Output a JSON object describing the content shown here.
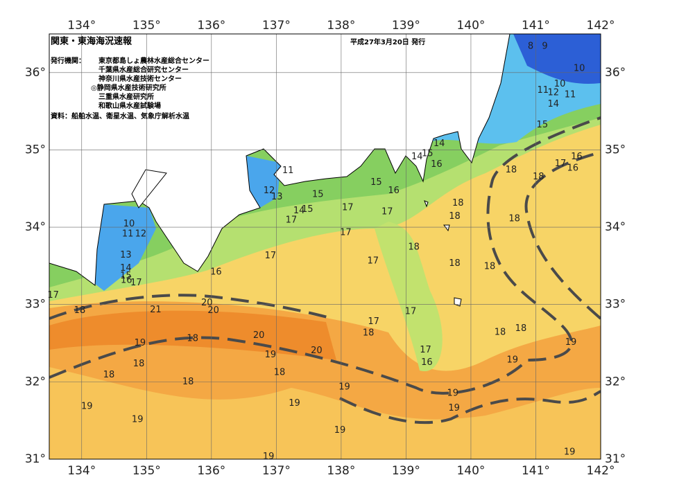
{
  "header": {
    "title": "関東・東海海況速報",
    "date": "平成27年3月20日 発行",
    "issuer_label": "発行機関：",
    "issuers": [
      "東京都島しょ農林水産総合センター",
      "千葉県水産総合研究センター",
      "神奈川県水産技術センター",
      "◎静岡県水産技術研究所",
      "三重県水産研究所",
      "和歌山県水産試験場"
    ],
    "source": "資料：船舶水温、衛星水温、気象庁解析水温"
  },
  "map": {
    "xlim": [
      133.5,
      142
    ],
    "ylim": [
      31,
      36.5
    ],
    "xticks": [
      {
        "value": 134,
        "label": "134°"
      },
      {
        "value": 135,
        "label": "135°"
      },
      {
        "value": 136,
        "label": "136°"
      },
      {
        "value": 137,
        "label": "137°"
      },
      {
        "value": 138,
        "label": "138°"
      },
      {
        "value": 139,
        "label": "139°"
      },
      {
        "value": 140,
        "label": "140°"
      },
      {
        "value": 141,
        "label": "141°"
      },
      {
        "value": 142,
        "label": "142°"
      }
    ],
    "yticks": [
      {
        "value": 31,
        "label": "31°"
      },
      {
        "value": 32,
        "label": "32°"
      },
      {
        "value": 33,
        "label": "33°"
      },
      {
        "value": 34,
        "label": "34°"
      },
      {
        "value": 35,
        "label": "35°"
      },
      {
        "value": 36,
        "label": "36°"
      }
    ],
    "isotherm_labels": [
      {
        "value": 8,
        "lon": 140.92,
        "lat": 36.34
      },
      {
        "value": 9,
        "lon": 141.14,
        "lat": 36.34
      },
      {
        "value": 10,
        "lon": 141.67,
        "lat": 36.05
      },
      {
        "value": 10,
        "lon": 141.37,
        "lat": 35.85
      },
      {
        "value": 11,
        "lon": 141.11,
        "lat": 35.77
      },
      {
        "value": 12,
        "lon": 141.27,
        "lat": 35.74
      },
      {
        "value": 11,
        "lon": 141.53,
        "lat": 35.71
      },
      {
        "value": 14,
        "lon": 141.27,
        "lat": 35.59
      },
      {
        "value": 15,
        "lon": 141.1,
        "lat": 35.32
      },
      {
        "value": 14,
        "lon": 139.51,
        "lat": 35.08
      },
      {
        "value": 15,
        "lon": 139.33,
        "lat": 34.95
      },
      {
        "value": 14,
        "lon": 139.17,
        "lat": 34.91
      },
      {
        "value": 16,
        "lon": 139.47,
        "lat": 34.81
      },
      {
        "value": 16,
        "lon": 141.63,
        "lat": 34.91
      },
      {
        "value": 17,
        "lon": 141.38,
        "lat": 34.82
      },
      {
        "value": 16,
        "lon": 141.57,
        "lat": 34.76
      },
      {
        "value": 18,
        "lon": 140.62,
        "lat": 34.74
      },
      {
        "value": 18,
        "lon": 141.04,
        "lat": 34.65
      },
      {
        "value": 11,
        "lon": 137.18,
        "lat": 34.73
      },
      {
        "value": 12,
        "lon": 136.89,
        "lat": 34.47
      },
      {
        "value": 13,
        "lon": 137.01,
        "lat": 34.39
      },
      {
        "value": 15,
        "lon": 137.64,
        "lat": 34.42
      },
      {
        "value": 15,
        "lon": 138.54,
        "lat": 34.58
      },
      {
        "value": 16,
        "lon": 138.81,
        "lat": 34.47
      },
      {
        "value": 18,
        "lon": 139.8,
        "lat": 34.31
      },
      {
        "value": 18,
        "lon": 139.75,
        "lat": 34.14
      },
      {
        "value": 18,
        "lon": 140.67,
        "lat": 34.11
      },
      {
        "value": 17,
        "lon": 138.1,
        "lat": 34.25
      },
      {
        "value": 17,
        "lon": 138.71,
        "lat": 34.2
      },
      {
        "value": 14,
        "lon": 137.35,
        "lat": 34.21
      },
      {
        "value": 15,
        "lon": 137.48,
        "lat": 34.23
      },
      {
        "value": 17,
        "lon": 137.23,
        "lat": 34.09
      },
      {
        "value": 17,
        "lon": 138.07,
        "lat": 33.93
      },
      {
        "value": 10,
        "lon": 134.73,
        "lat": 34.04
      },
      {
        "value": 11,
        "lon": 134.71,
        "lat": 33.91
      },
      {
        "value": 12,
        "lon": 134.91,
        "lat": 33.91
      },
      {
        "value": 13,
        "lon": 134.68,
        "lat": 33.64
      },
      {
        "value": 14,
        "lon": 134.68,
        "lat": 33.47
      },
      {
        "value": 15,
        "lon": 134.68,
        "lat": 33.37
      },
      {
        "value": 16,
        "lon": 134.69,
        "lat": 33.31
      },
      {
        "value": 17,
        "lon": 134.84,
        "lat": 33.28
      },
      {
        "value": 16,
        "lon": 136.07,
        "lat": 33.42
      },
      {
        "value": 17,
        "lon": 136.91,
        "lat": 33.63
      },
      {
        "value": 18,
        "lon": 139.12,
        "lat": 33.74
      },
      {
        "value": 17,
        "lon": 138.49,
        "lat": 33.56
      },
      {
        "value": 18,
        "lon": 139.75,
        "lat": 33.53
      },
      {
        "value": 18,
        "lon": 140.29,
        "lat": 33.49
      },
      {
        "value": 17,
        "lon": 133.56,
        "lat": 33.12
      },
      {
        "value": 18,
        "lon": 133.97,
        "lat": 32.92
      },
      {
        "value": 21,
        "lon": 135.14,
        "lat": 32.93
      },
      {
        "value": 20,
        "lon": 135.93,
        "lat": 33.02
      },
      {
        "value": 20,
        "lon": 136.03,
        "lat": 32.92
      },
      {
        "value": 17,
        "lon": 139.07,
        "lat": 32.91
      },
      {
        "value": 17,
        "lon": 138.5,
        "lat": 32.78
      },
      {
        "value": 18,
        "lon": 138.42,
        "lat": 32.63
      },
      {
        "value": 20,
        "lon": 136.73,
        "lat": 32.6
      },
      {
        "value": 18,
        "lon": 135.71,
        "lat": 32.56
      },
      {
        "value": 19,
        "lon": 134.9,
        "lat": 32.5
      },
      {
        "value": 18,
        "lon": 140.45,
        "lat": 32.64
      },
      {
        "value": 18,
        "lon": 140.77,
        "lat": 32.69
      },
      {
        "value": 19,
        "lon": 141.54,
        "lat": 32.51
      },
      {
        "value": 19,
        "lon": 140.64,
        "lat": 32.28
      },
      {
        "value": 19,
        "lon": 136.91,
        "lat": 32.35
      },
      {
        "value": 20,
        "lon": 137.62,
        "lat": 32.4
      },
      {
        "value": 17,
        "lon": 139.3,
        "lat": 32.41
      },
      {
        "value": 16,
        "lon": 139.32,
        "lat": 32.25
      },
      {
        "value": 18,
        "lon": 134.88,
        "lat": 32.23
      },
      {
        "value": 18,
        "lon": 134.42,
        "lat": 32.09
      },
      {
        "value": 18,
        "lon": 137.05,
        "lat": 32.12
      },
      {
        "value": 18,
        "lon": 135.64,
        "lat": 32.0
      },
      {
        "value": 19,
        "lon": 138.05,
        "lat": 31.93
      },
      {
        "value": 19,
        "lon": 139.72,
        "lat": 31.85
      },
      {
        "value": 19,
        "lon": 134.08,
        "lat": 31.68
      },
      {
        "value": 19,
        "lon": 137.28,
        "lat": 31.72
      },
      {
        "value": 19,
        "lon": 139.74,
        "lat": 31.66
      },
      {
        "value": 19,
        "lon": 134.86,
        "lat": 31.51
      },
      {
        "value": 19,
        "lon": 137.98,
        "lat": 31.37
      },
      {
        "value": 19,
        "lon": 136.88,
        "lat": 31.03
      },
      {
        "value": 19,
        "lon": 141.52,
        "lat": 31.09
      }
    ]
  }
}
